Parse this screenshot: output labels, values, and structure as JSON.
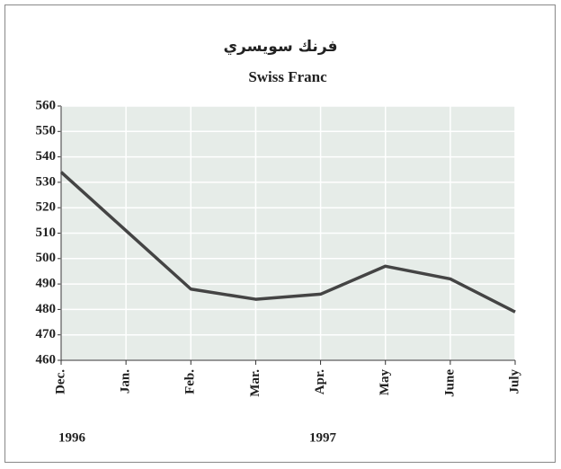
{
  "chart_data": {
    "type": "line",
    "title": "فرنك سويسري",
    "subtitle": "Swiss Franc",
    "categories": [
      "Dec.",
      "Jan.",
      "Feb.",
      "Mar.",
      "Apr.",
      "May",
      "June",
      "July"
    ],
    "year_labels": [
      "1996",
      "1997"
    ],
    "values": [
      534,
      511,
      488,
      484,
      486,
      497,
      492,
      479
    ],
    "color": "#444444",
    "ylim": [
      460,
      560
    ],
    "yticks": [
      460,
      470,
      480,
      490,
      500,
      510,
      520,
      530,
      540,
      550,
      560
    ],
    "grid": true
  }
}
